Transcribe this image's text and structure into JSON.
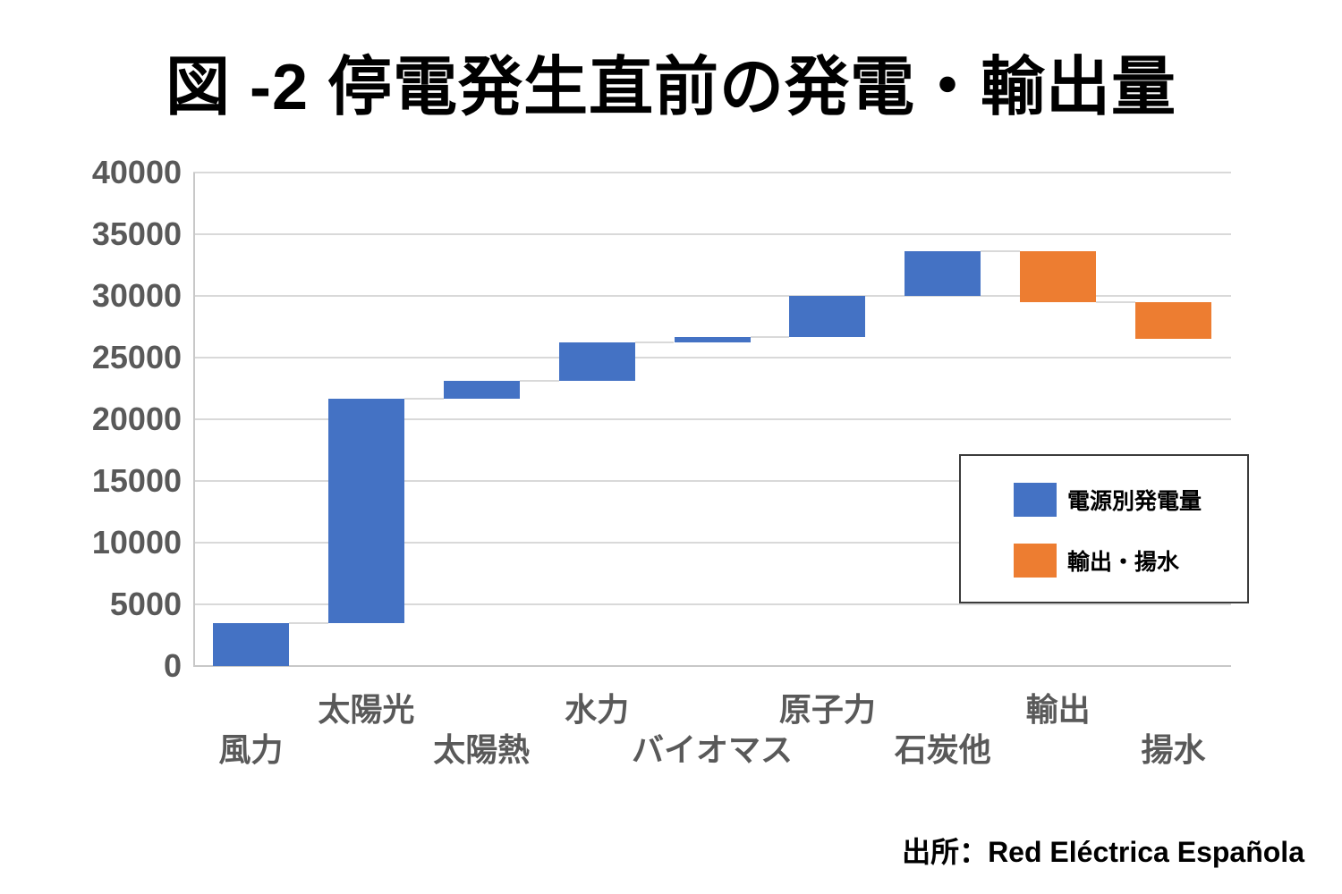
{
  "title": "図 -2 停電発生直前の発電・輸出量",
  "source": "出所：Red Eléctrica Española",
  "legend": {
    "generation_label": "電源別発電量",
    "export_label": "輸出・揚水"
  },
  "colors": {
    "generation": "#4472C4",
    "export_pumping": "#ED7D31",
    "gridline": "#D9D9D9",
    "axis_line": "#C8C8C8",
    "connector": "#D9D9D9",
    "tick_label": "#595959",
    "legend_border": "#3B3B3B"
  },
  "chart_data": {
    "type": "bar",
    "subtype": "waterfall",
    "title": "図 -2 停電発生直前の発電・輸出量",
    "xlabel": "",
    "ylabel": "",
    "ylim": [
      0,
      40000
    ],
    "yticks": [
      0,
      5000,
      10000,
      15000,
      20000,
      25000,
      30000,
      35000,
      40000
    ],
    "grid": true,
    "legend_position": "inside-right",
    "legend_entries": [
      "電源別発電量",
      "輸出・揚水"
    ],
    "categories": [
      "風力",
      "太陽光",
      "太陽熱",
      "水力",
      "バイオマス",
      "原子力",
      "石炭他",
      "輸出",
      "揚水"
    ],
    "steps": [
      {
        "category": "風力",
        "series": "電源別発電量",
        "type": "generation",
        "delta": 3500,
        "start": 0,
        "end": 3500
      },
      {
        "category": "太陽光",
        "series": "電源別発電量",
        "type": "generation",
        "delta": 18200,
        "start": 3500,
        "end": 21700
      },
      {
        "category": "太陽熱",
        "series": "電源別発電量",
        "type": "generation",
        "delta": 1400,
        "start": 21700,
        "end": 23100
      },
      {
        "category": "水力",
        "series": "電源別発電量",
        "type": "generation",
        "delta": 3100,
        "start": 23100,
        "end": 26200
      },
      {
        "category": "バイオマス",
        "series": "電源別発電量",
        "type": "generation",
        "delta": 500,
        "start": 26200,
        "end": 26700
      },
      {
        "category": "原子力",
        "series": "電源別発電量",
        "type": "generation",
        "delta": 3300,
        "start": 26700,
        "end": 30000
      },
      {
        "category": "石炭他",
        "series": "電源別発電量",
        "type": "generation",
        "delta": 3600,
        "start": 30000,
        "end": 33600
      },
      {
        "category": "輸出",
        "series": "輸出・揚水",
        "type": "export",
        "delta": -4100,
        "start": 33600,
        "end": 29500
      },
      {
        "category": "揚水",
        "series": "輸出・揚水",
        "type": "export",
        "delta": -3000,
        "start": 29500,
        "end": 26500
      }
    ]
  }
}
